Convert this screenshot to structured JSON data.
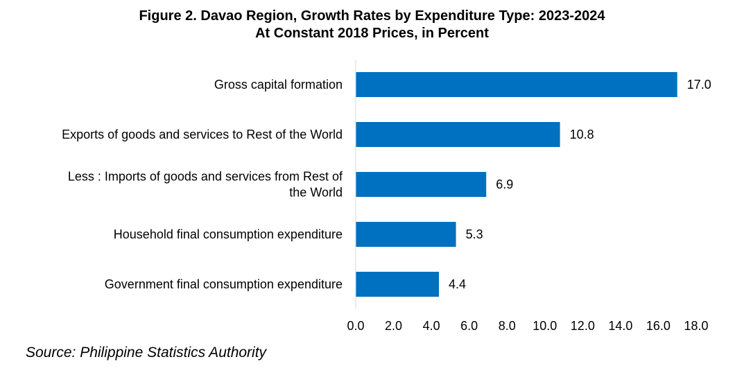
{
  "chart_data": {
    "type": "bar",
    "orientation": "horizontal",
    "title": "Figure 2. Davao Region, Growth Rates by Expenditure Type: 2023-2024",
    "subtitle": "At Constant 2018 Prices, in Percent",
    "categories": [
      "Gross capital formation",
      "Exports of goods and services to Rest of the World",
      "Less : Imports of goods and services from Rest of the World",
      "Household final consumption expenditure",
      "Government final consumption expenditure"
    ],
    "values": [
      17.0,
      10.8,
      6.9,
      5.3,
      4.4
    ],
    "data_labels": [
      "17.0",
      "10.8",
      "6.9",
      "5.3",
      "4.4"
    ],
    "xlim": [
      0,
      18
    ],
    "x_ticks": [
      "0.0",
      "2.0",
      "4.0",
      "6.0",
      "8.0",
      "10.0",
      "12.0",
      "14.0",
      "16.0",
      "18.0"
    ],
    "xlabel": "",
    "ylabel": "",
    "grid": false,
    "legend": "none",
    "bar_color": "#0070C0"
  },
  "source": "Source: Philippine Statistics Authority"
}
